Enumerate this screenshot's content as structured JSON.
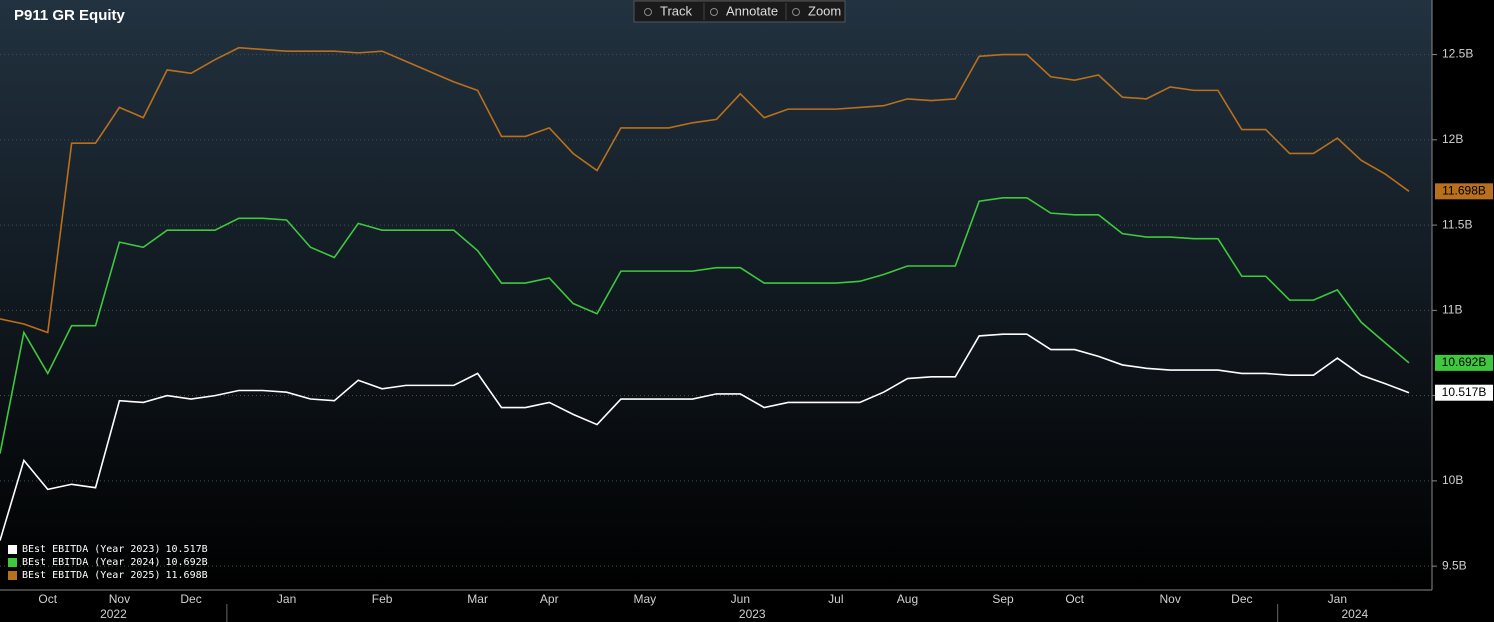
{
  "chart_data": {
    "type": "line",
    "title": "P911 GR Equity",
    "toolbar": [
      "Track",
      "Annotate",
      "Zoom"
    ],
    "categories": [
      null,
      null,
      "Oct",
      null,
      null,
      "Nov",
      null,
      null,
      "Dec",
      null,
      null,
      null,
      "Jan",
      null,
      null,
      null,
      "Feb",
      null,
      null,
      null,
      "Mar",
      null,
      null,
      "Apr",
      null,
      null,
      null,
      "May",
      null,
      null,
      null,
      "Jun",
      null,
      null,
      null,
      "Jul",
      null,
      null,
      "Aug",
      null,
      null,
      null,
      "Sep",
      null,
      null,
      "Oct",
      null,
      null,
      null,
      "Nov",
      null,
      null,
      "Dec",
      null,
      null,
      null,
      "Jan",
      null,
      null,
      null
    ],
    "years": [
      {
        "label": "2022",
        "from": 0,
        "to": 9
      },
      {
        "label": "2023",
        "from": 10,
        "to": 53
      },
      {
        "label": "2024",
        "from": 54,
        "to": 59
      }
    ],
    "series": [
      {
        "name": "BEst EBITDA (Year 2023)",
        "color": "#ffffff",
        "last_value_label": "10.517B",
        "values": [
          9.65,
          10.12,
          9.95,
          9.98,
          9.96,
          10.47,
          10.46,
          10.5,
          10.48,
          10.5,
          10.53,
          10.53,
          10.52,
          10.48,
          10.47,
          10.59,
          10.54,
          10.56,
          10.56,
          10.56,
          10.63,
          10.43,
          10.43,
          10.46,
          10.39,
          10.33,
          10.48,
          10.48,
          10.48,
          10.48,
          10.51,
          10.51,
          10.43,
          10.46,
          10.46,
          10.46,
          10.46,
          10.52,
          10.6,
          10.61,
          10.61,
          10.85,
          10.86,
          10.86,
          10.77,
          10.77,
          10.73,
          10.68,
          10.66,
          10.65,
          10.65,
          10.65,
          10.63,
          10.63,
          10.62,
          10.62,
          10.72,
          10.62,
          10.57,
          10.517
        ]
      },
      {
        "name": "BEst EBITDA (Year 2024)",
        "color": "#3ec83e",
        "last_value_label": "10.692B",
        "values": [
          10.16,
          10.87,
          10.63,
          10.91,
          10.91,
          11.4,
          11.37,
          11.47,
          11.47,
          11.47,
          11.54,
          11.54,
          11.53,
          11.37,
          11.31,
          11.51,
          11.47,
          11.47,
          11.47,
          11.47,
          11.35,
          11.16,
          11.16,
          11.19,
          11.04,
          10.98,
          11.23,
          11.23,
          11.23,
          11.23,
          11.25,
          11.25,
          11.16,
          11.16,
          11.16,
          11.16,
          11.17,
          11.21,
          11.26,
          11.26,
          11.26,
          11.64,
          11.66,
          11.66,
          11.57,
          11.56,
          11.56,
          11.45,
          11.43,
          11.43,
          11.42,
          11.42,
          11.2,
          11.2,
          11.06,
          11.06,
          11.12,
          10.93,
          10.81,
          10.692
        ]
      },
      {
        "name": "BEst EBITDA (Year 2025)",
        "color": "#b8701c",
        "last_value_label": "11.698B",
        "values": [
          10.95,
          10.92,
          10.87,
          11.98,
          11.98,
          12.19,
          12.13,
          12.41,
          12.39,
          12.47,
          12.54,
          12.53,
          12.52,
          12.52,
          12.52,
          12.51,
          12.52,
          12.46,
          12.4,
          12.34,
          12.29,
          12.02,
          12.02,
          12.07,
          11.92,
          11.82,
          12.07,
          12.07,
          12.07,
          12.1,
          12.12,
          12.27,
          12.13,
          12.18,
          12.18,
          12.18,
          12.19,
          12.2,
          12.24,
          12.23,
          12.24,
          12.49,
          12.5,
          12.5,
          12.37,
          12.35,
          12.38,
          12.25,
          12.24,
          12.31,
          12.29,
          12.29,
          12.06,
          12.06,
          11.92,
          11.92,
          12.01,
          11.88,
          11.8,
          11.698
        ]
      }
    ],
    "ylim": [
      9.36,
      12.82
    ],
    "yticks": [
      {
        "value": 9.5,
        "label": "9.5B"
      },
      {
        "value": 10,
        "label": "10B"
      },
      {
        "value": 10.5,
        "label": "10.5B"
      },
      {
        "value": 11,
        "label": "11B"
      },
      {
        "value": 11.5,
        "label": "11.5B"
      },
      {
        "value": 12,
        "label": "12B"
      },
      {
        "value": 12.5,
        "label": "12.5B"
      }
    ],
    "grid": true,
    "legend": "lower left"
  }
}
